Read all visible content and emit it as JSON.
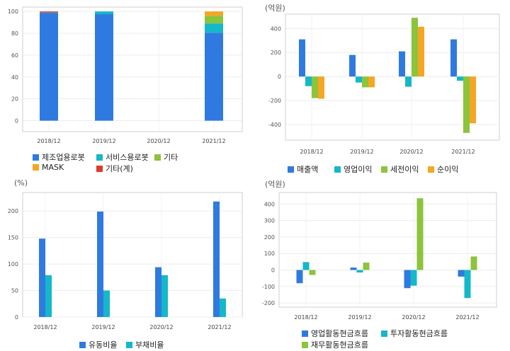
{
  "chart_data": [
    {
      "type": "bar",
      "stacked": true,
      "categories": [
        "2018/12",
        "2019/12",
        "2020/12",
        "2021/12"
      ],
      "ylim": [
        -10,
        104
      ],
      "yticks": [
        0,
        20,
        40,
        60,
        80,
        100
      ],
      "grid": true,
      "legend_position": "bottom",
      "series": [
        {
          "name": "제조업용로봇",
          "color": "#2f7ae0",
          "values": [
            98.5,
            97.5,
            null,
            80.5
          ]
        },
        {
          "name": "서비스용로봇",
          "color": "#14b8c8",
          "values": [
            0.5,
            2.5,
            null,
            8.5
          ]
        },
        {
          "name": "기타",
          "color": "#8cc43c",
          "values": [
            0,
            0,
            null,
            7
          ]
        },
        {
          "name": "MASK",
          "color": "#f5a623",
          "values": [
            0,
            0,
            null,
            4
          ]
        },
        {
          "name": "기타(계)",
          "color": "#e03a2f",
          "values": [
            1,
            0,
            null,
            0
          ]
        }
      ]
    },
    {
      "type": "bar",
      "categories": [
        "2018/12",
        "2019/12",
        "2020/12",
        "2021/12"
      ],
      "unit": "(억원)",
      "ylim": [
        -530,
        520
      ],
      "yticks": [
        -400,
        -200,
        0,
        200,
        400
      ],
      "grid": true,
      "legend_position": "bottom",
      "series": [
        {
          "name": "매출액",
          "color": "#2f7ae0",
          "values": [
            310,
            180,
            210,
            310
          ]
        },
        {
          "name": "영업이익",
          "color": "#14b8c8",
          "values": [
            -80,
            -50,
            -85,
            -35
          ]
        },
        {
          "name": "세전이익",
          "color": "#8cc43c",
          "values": [
            -180,
            -90,
            490,
            -470
          ]
        },
        {
          "name": "순이익",
          "color": "#f5a623",
          "values": [
            -185,
            -90,
            415,
            -390
          ]
        }
      ]
    },
    {
      "type": "bar",
      "categories": [
        "2018/12",
        "2019/12",
        "2020/12",
        "2021/12"
      ],
      "unit": "(%)",
      "ylim": [
        0,
        235
      ],
      "yticks": [
        0,
        50,
        100,
        150,
        200
      ],
      "grid": true,
      "legend_position": "bottom",
      "series": [
        {
          "name": "유동비율",
          "color": "#2f7ae0",
          "values": [
            148,
            199,
            94,
            218
          ]
        },
        {
          "name": "부채비율",
          "color": "#14b8c8",
          "values": [
            79,
            50,
            79,
            35
          ]
        }
      ]
    },
    {
      "type": "bar",
      "categories": [
        "2018/12",
        "2019/12",
        "2020/12",
        "2021/12"
      ],
      "unit": "(억원)",
      "ylim": [
        -225,
        470
      ],
      "yticks": [
        -200,
        -100,
        0,
        100,
        200,
        300,
        400
      ],
      "grid": true,
      "legend_position": "bottom",
      "series": [
        {
          "name": "영업활동현금흐름",
          "color": "#2f7ae0",
          "values": [
            -80,
            15,
            -110,
            -40
          ]
        },
        {
          "name": "투자활동현금흐름",
          "color": "#14b8c8",
          "values": [
            48,
            -15,
            -95,
            -170
          ]
        },
        {
          "name": "재무활동현금흐름",
          "color": "#8cc43c",
          "values": [
            -30,
            45,
            435,
            82
          ]
        }
      ]
    }
  ]
}
